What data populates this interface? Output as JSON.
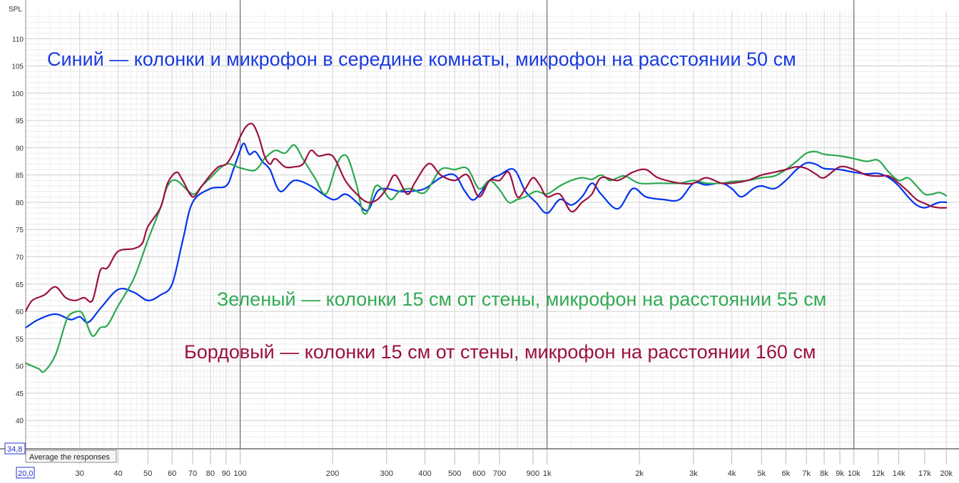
{
  "chart_data": {
    "type": "line",
    "ylabel": "SPL",
    "x_scale": "log",
    "xlim": [
      20,
      22000
    ],
    "ylim": [
      34.8,
      115
    ],
    "grid": true,
    "y_ticks": [
      40,
      45,
      50,
      55,
      60,
      65,
      70,
      75,
      80,
      85,
      90,
      95,
      100,
      105,
      110
    ],
    "x_ticks": [
      {
        "v": 30,
        "label": "30"
      },
      {
        "v": 40,
        "label": "40"
      },
      {
        "v": 50,
        "label": "50"
      },
      {
        "v": 60,
        "label": "60"
      },
      {
        "v": 70,
        "label": "70"
      },
      {
        "v": 80,
        "label": "80"
      },
      {
        "v": 90,
        "label": "90"
      },
      {
        "v": 100,
        "label": "100"
      },
      {
        "v": 200,
        "label": "200"
      },
      {
        "v": 300,
        "label": "300"
      },
      {
        "v": 400,
        "label": "400"
      },
      {
        "v": 500,
        "label": "500"
      },
      {
        "v": 600,
        "label": "600"
      },
      {
        "v": 700,
        "label": "700"
      },
      {
        "v": 900,
        "label": "900"
      },
      {
        "v": 1000,
        "label": "1k"
      },
      {
        "v": 2000,
        "label": "2k"
      },
      {
        "v": 3000,
        "label": "3k"
      },
      {
        "v": 4000,
        "label": "4k"
      },
      {
        "v": 5000,
        "label": "5k"
      },
      {
        "v": 6000,
        "label": "6k"
      },
      {
        "v": 7000,
        "label": "7k"
      },
      {
        "v": 8000,
        "label": "8k"
      },
      {
        "v": 9000,
        "label": "9k"
      },
      {
        "v": 10000,
        "label": "10k"
      },
      {
        "v": 12000,
        "label": "12k"
      },
      {
        "v": 14000,
        "label": "14k"
      },
      {
        "v": 17000,
        "label": "17k"
      },
      {
        "v": 20000,
        "label": "20k"
      }
    ],
    "series": [
      {
        "color": "#0033ee",
        "points": [
          [
            20,
            57
          ],
          [
            22,
            58.5
          ],
          [
            25,
            59.5
          ],
          [
            28,
            58.5
          ],
          [
            30,
            59
          ],
          [
            32,
            58
          ],
          [
            35,
            60.5
          ],
          [
            40,
            64
          ],
          [
            45,
            63.5
          ],
          [
            50,
            62
          ],
          [
            55,
            63
          ],
          [
            60,
            65
          ],
          [
            65,
            73
          ],
          [
            70,
            80
          ],
          [
            80,
            82.5
          ],
          [
            90,
            83
          ],
          [
            95,
            86
          ],
          [
            100,
            89.5
          ],
          [
            103,
            90.8
          ],
          [
            107,
            88.8
          ],
          [
            112,
            89.3
          ],
          [
            118,
            87.5
          ],
          [
            125,
            86
          ],
          [
            135,
            82
          ],
          [
            150,
            84
          ],
          [
            170,
            83
          ],
          [
            200,
            80.5
          ],
          [
            220,
            81.5
          ],
          [
            240,
            80
          ],
          [
            260,
            78.5
          ],
          [
            280,
            82
          ],
          [
            300,
            82.5
          ],
          [
            330,
            82
          ],
          [
            360,
            82
          ],
          [
            400,
            82.5
          ],
          [
            450,
            84.5
          ],
          [
            500,
            85
          ],
          [
            540,
            82
          ],
          [
            580,
            80.5
          ],
          [
            650,
            84
          ],
          [
            700,
            85
          ],
          [
            780,
            86
          ],
          [
            850,
            82
          ],
          [
            920,
            80
          ],
          [
            1000,
            78
          ],
          [
            1100,
            80.5
          ],
          [
            1200,
            79.5
          ],
          [
            1300,
            81
          ],
          [
            1400,
            83.5
          ],
          [
            1500,
            81.5
          ],
          [
            1700,
            78.8
          ],
          [
            1900,
            82.5
          ],
          [
            2100,
            81
          ],
          [
            2400,
            80.5
          ],
          [
            2700,
            80.5
          ],
          [
            3000,
            83.5
          ],
          [
            3300,
            83.2
          ],
          [
            3700,
            83.5
          ],
          [
            4000,
            82.5
          ],
          [
            4300,
            81
          ],
          [
            4700,
            82.5
          ],
          [
            5000,
            83
          ],
          [
            5500,
            82.5
          ],
          [
            6000,
            84
          ],
          [
            6500,
            86
          ],
          [
            7000,
            87.2
          ],
          [
            7500,
            87
          ],
          [
            8000,
            86.2
          ],
          [
            9000,
            86
          ],
          [
            10000,
            85.5
          ],
          [
            11000,
            85.2
          ],
          [
            12000,
            85.3
          ],
          [
            13000,
            84.5
          ],
          [
            14000,
            83
          ],
          [
            15000,
            81
          ],
          [
            16000,
            79.5
          ],
          [
            17000,
            79
          ],
          [
            18000,
            79.5
          ],
          [
            19000,
            80
          ],
          [
            20000,
            80
          ]
        ]
      },
      {
        "color": "#2aa84e",
        "points": [
          [
            20,
            50.5
          ],
          [
            22,
            49.5
          ],
          [
            23,
            49
          ],
          [
            25,
            52
          ],
          [
            27,
            58
          ],
          [
            28,
            59.5
          ],
          [
            30,
            60
          ],
          [
            31,
            59
          ],
          [
            33,
            55.5
          ],
          [
            35,
            57
          ],
          [
            37,
            57.5
          ],
          [
            40,
            61
          ],
          [
            45,
            66
          ],
          [
            50,
            73
          ],
          [
            55,
            79
          ],
          [
            58,
            83
          ],
          [
            62,
            84
          ],
          [
            70,
            81.5
          ],
          [
            75,
            83
          ],
          [
            80,
            84.5
          ],
          [
            90,
            87
          ],
          [
            100,
            86.3
          ],
          [
            110,
            85.8
          ],
          [
            115,
            86.5
          ],
          [
            120,
            88
          ],
          [
            130,
            89.5
          ],
          [
            140,
            89
          ],
          [
            150,
            90.5
          ],
          [
            160,
            88
          ],
          [
            175,
            84.5
          ],
          [
            190,
            81.5
          ],
          [
            205,
            86.5
          ],
          [
            215,
            88.5
          ],
          [
            225,
            88
          ],
          [
            240,
            83
          ],
          [
            250,
            78.5
          ],
          [
            260,
            78.3
          ],
          [
            275,
            82.8
          ],
          [
            290,
            82.5
          ],
          [
            310,
            80.5
          ],
          [
            330,
            82
          ],
          [
            360,
            82.5
          ],
          [
            400,
            81.8
          ],
          [
            450,
            86
          ],
          [
            500,
            86
          ],
          [
            550,
            86.2
          ],
          [
            600,
            82.5
          ],
          [
            650,
            84
          ],
          [
            700,
            82.3
          ],
          [
            750,
            80
          ],
          [
            800,
            80.5
          ],
          [
            850,
            81
          ],
          [
            920,
            82
          ],
          [
            1000,
            81.5
          ],
          [
            1100,
            83
          ],
          [
            1200,
            84
          ],
          [
            1300,
            84.5
          ],
          [
            1400,
            84.2
          ],
          [
            1500,
            85
          ],
          [
            1600,
            84
          ],
          [
            1700,
            84.5
          ],
          [
            1800,
            84.8
          ],
          [
            2000,
            83.5
          ],
          [
            2300,
            83.5
          ],
          [
            2700,
            83.5
          ],
          [
            3000,
            84
          ],
          [
            3300,
            83.5
          ],
          [
            3700,
            83.5
          ],
          [
            4000,
            83.8
          ],
          [
            4500,
            84
          ],
          [
            5000,
            84.5
          ],
          [
            5500,
            84.8
          ],
          [
            6000,
            86
          ],
          [
            6500,
            87.5
          ],
          [
            7000,
            89
          ],
          [
            7500,
            89.3
          ],
          [
            8000,
            88.8
          ],
          [
            9000,
            88.5
          ],
          [
            10000,
            88
          ],
          [
            11000,
            87.5
          ],
          [
            12000,
            87.7
          ],
          [
            13000,
            85.5
          ],
          [
            14000,
            84
          ],
          [
            15000,
            84.5
          ],
          [
            16000,
            83
          ],
          [
            17000,
            81.5
          ],
          [
            18000,
            81.5
          ],
          [
            19000,
            81.8
          ],
          [
            20000,
            81.2
          ]
        ]
      },
      {
        "color": "#9c1040",
        "points": [
          [
            20,
            60
          ],
          [
            21,
            62
          ],
          [
            23,
            63
          ],
          [
            25,
            64.5
          ],
          [
            27,
            62.5
          ],
          [
            29,
            62
          ],
          [
            31,
            62.5
          ],
          [
            33,
            62
          ],
          [
            35,
            67.5
          ],
          [
            37,
            68
          ],
          [
            40,
            71
          ],
          [
            45,
            71.5
          ],
          [
            48,
            72.5
          ],
          [
            50,
            75.5
          ],
          [
            55,
            79
          ],
          [
            58,
            83.5
          ],
          [
            62,
            85.5
          ],
          [
            65,
            84
          ],
          [
            70,
            81
          ],
          [
            75,
            83
          ],
          [
            80,
            85
          ],
          [
            85,
            86.5
          ],
          [
            90,
            87
          ],
          [
            95,
            89
          ],
          [
            100,
            92
          ],
          [
            105,
            94
          ],
          [
            110,
            94.3
          ],
          [
            115,
            92
          ],
          [
            120,
            88.5
          ],
          [
            125,
            87
          ],
          [
            130,
            88
          ],
          [
            140,
            86.5
          ],
          [
            150,
            86.5
          ],
          [
            160,
            87
          ],
          [
            170,
            89.5
          ],
          [
            180,
            88.5
          ],
          [
            200,
            88.5
          ],
          [
            220,
            84
          ],
          [
            240,
            81.5
          ],
          [
            260,
            80
          ],
          [
            280,
            80.5
          ],
          [
            300,
            82.5
          ],
          [
            320,
            85
          ],
          [
            350,
            81.5
          ],
          [
            370,
            83.5
          ],
          [
            400,
            86.5
          ],
          [
            420,
            87
          ],
          [
            450,
            85
          ],
          [
            500,
            84
          ],
          [
            550,
            85
          ],
          [
            600,
            81
          ],
          [
            650,
            84
          ],
          [
            700,
            84
          ],
          [
            750,
            85.5
          ],
          [
            800,
            81
          ],
          [
            850,
            82.5
          ],
          [
            900,
            84.5
          ],
          [
            950,
            83
          ],
          [
            1000,
            81
          ],
          [
            1100,
            81.5
          ],
          [
            1200,
            78.3
          ],
          [
            1300,
            80
          ],
          [
            1400,
            81.5
          ],
          [
            1500,
            84.5
          ],
          [
            1700,
            84
          ],
          [
            1900,
            85.5
          ],
          [
            2100,
            86
          ],
          [
            2300,
            84.5
          ],
          [
            2700,
            83.5
          ],
          [
            3000,
            83.5
          ],
          [
            3300,
            84.5
          ],
          [
            3700,
            83.5
          ],
          [
            4000,
            83.5
          ],
          [
            4500,
            84
          ],
          [
            5000,
            85
          ],
          [
            5500,
            85.5
          ],
          [
            6000,
            86
          ],
          [
            6500,
            86.5
          ],
          [
            7000,
            86.2
          ],
          [
            7500,
            85.2
          ],
          [
            8000,
            84.5
          ],
          [
            9000,
            86.5
          ],
          [
            10000,
            86
          ],
          [
            11000,
            85
          ],
          [
            12000,
            84.8
          ],
          [
            13000,
            84.8
          ],
          [
            14000,
            83.5
          ],
          [
            15000,
            82
          ],
          [
            16000,
            80.5
          ],
          [
            17000,
            79.8
          ],
          [
            18000,
            79.2
          ],
          [
            19000,
            79
          ],
          [
            20000,
            79
          ]
        ]
      }
    ],
    "annotations": [
      {
        "text": "Синий — колонки и микрофон в середине комнаты, микрофон на расстоянии 50 см",
        "color": "#1a3be0"
      },
      {
        "text": "Зеленый — колонки 15 см от стены, микрофон на расстоянии 55 см",
        "color": "#33aa55"
      },
      {
        "text": "Бордовый — колонки 15 см от стены, микрофон на расстоянии 160 см",
        "color": "#9c1040"
      }
    ]
  },
  "ui": {
    "y_cursor_value": "34,8",
    "x_cursor_value": "20,0",
    "tooltip_text": "Average the responses"
  }
}
